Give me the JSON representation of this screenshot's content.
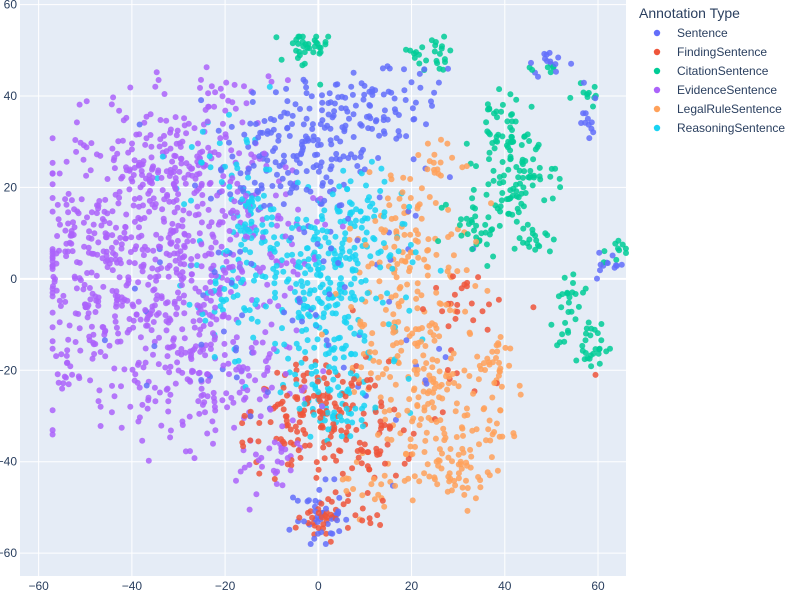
{
  "chart_data": {
    "type": "scatter",
    "title": "",
    "xlabel": "",
    "ylabel": "",
    "xlim": [
      -64,
      66
    ],
    "ylim": [
      -65,
      61
    ],
    "x_ticks": [
      -60,
      -40,
      -20,
      0,
      20,
      40,
      60
    ],
    "y_ticks": [
      -60,
      -40,
      -20,
      0,
      20,
      40,
      60
    ],
    "x_tick_labels": [
      "−60",
      "−40",
      "−20",
      "0",
      "20",
      "40",
      "60"
    ],
    "y_tick_labels": [
      "−60",
      "−40",
      "−20",
      "0",
      "20",
      "40",
      "60"
    ],
    "grid": true,
    "legend": {
      "title": "Annotation Type",
      "placement": "right"
    },
    "colors": {
      "plot_background": "#e5ecf6",
      "grid": "#ffffff",
      "text": "#2a3f5f"
    },
    "series": [
      {
        "name": "Sentence",
        "color": "#636efa",
        "clusters": [
          {
            "cx": -2,
            "cy": 30,
            "sx": 9,
            "sy": 8,
            "n": 150
          },
          {
            "cx": 12,
            "cy": 36,
            "sx": 6,
            "sy": 7,
            "n": 45
          },
          {
            "cx": -12,
            "cy": 22,
            "sx": 6,
            "sy": 7,
            "n": 35
          },
          {
            "cx": 0,
            "cy": -52,
            "sx": 2.5,
            "sy": 3.5,
            "n": 40
          },
          {
            "cx": 20,
            "cy": 40,
            "sx": 5,
            "sy": 6,
            "n": 25
          },
          {
            "cx": 49,
            "cy": 47,
            "sx": 2.5,
            "sy": 1.2,
            "n": 14
          },
          {
            "cx": 58,
            "cy": 37,
            "sx": 1.2,
            "sy": 4,
            "n": 12
          },
          {
            "cx": 62,
            "cy": 3,
            "sx": 2,
            "sy": 1.5,
            "n": 12
          },
          {
            "cx": 5,
            "cy": -5,
            "sx": 12,
            "sy": 14,
            "n": 50
          },
          {
            "cx": -25,
            "cy": -10,
            "sx": 12,
            "sy": 12,
            "n": 25
          }
        ]
      },
      {
        "name": "FindingSentence",
        "color": "#ef553b",
        "clusters": [
          {
            "cx": 0,
            "cy": -28,
            "sx": 7,
            "sy": 5,
            "n": 110
          },
          {
            "cx": 10,
            "cy": -36,
            "sx": 5,
            "sy": 4,
            "n": 55
          },
          {
            "cx": -10,
            "cy": -36,
            "sx": 4,
            "sy": 4,
            "n": 20
          },
          {
            "cx": 2,
            "cy": -52,
            "sx": 3,
            "sy": 2.5,
            "n": 30
          },
          {
            "cx": 30,
            "cy": -4,
            "sx": 3,
            "sy": 3,
            "n": 20
          },
          {
            "cx": 10,
            "cy": -50,
            "sx": 3,
            "sy": 2,
            "n": 12
          },
          {
            "cx": 30,
            "cy": -22,
            "sx": 12,
            "sy": 10,
            "n": 15
          }
        ]
      },
      {
        "name": "CitationSentence",
        "color": "#00cc96",
        "clusters": [
          {
            "cx": -3,
            "cy": 50,
            "sx": 2.5,
            "sy": 2.5,
            "n": 35
          },
          {
            "cx": 24,
            "cy": 49,
            "sx": 4,
            "sy": 2,
            "n": 25
          },
          {
            "cx": 40,
            "cy": 31,
            "sx": 3.5,
            "sy": 3,
            "n": 45
          },
          {
            "cx": 44,
            "cy": 22,
            "sx": 3.5,
            "sy": 3,
            "n": 40
          },
          {
            "cx": 41,
            "cy": 17,
            "sx": 3,
            "sy": 2.5,
            "n": 25
          },
          {
            "cx": 33,
            "cy": 12,
            "sx": 3.5,
            "sy": 3.5,
            "n": 35
          },
          {
            "cx": 47,
            "cy": 9,
            "sx": 2,
            "sy": 2.5,
            "n": 20
          },
          {
            "cx": 54,
            "cy": -3,
            "sx": 1.5,
            "sy": 3,
            "n": 18
          },
          {
            "cx": 58,
            "cy": -14,
            "sx": 3.5,
            "sy": 3,
            "n": 35
          },
          {
            "cx": 64,
            "cy": 6,
            "sx": 1.5,
            "sy": 1.5,
            "n": 10
          },
          {
            "cx": 40,
            "cy": 38,
            "sx": 2.5,
            "sy": 2,
            "n": 10
          },
          {
            "cx": 58,
            "cy": 40,
            "sx": 1.5,
            "sy": 2,
            "n": 10
          },
          {
            "cx": 50,
            "cy": 46,
            "sx": 1.5,
            "sy": 1,
            "n": 6
          }
        ]
      },
      {
        "name": "EvidenceSentence",
        "color": "#ab63fa",
        "clusters": [
          {
            "cx": -37,
            "cy": 5,
            "sx": 12,
            "sy": 16,
            "n": 500
          },
          {
            "cx": -30,
            "cy": 25,
            "sx": 8,
            "sy": 7,
            "n": 120
          },
          {
            "cx": -22,
            "cy": -20,
            "sx": 9,
            "sy": 9,
            "n": 150
          },
          {
            "cx": -50,
            "cy": 0,
            "sx": 3,
            "sy": 10,
            "n": 60
          },
          {
            "cx": -12,
            "cy": 8,
            "sx": 7,
            "sy": 12,
            "n": 80
          },
          {
            "cx": -10,
            "cy": -40,
            "sx": 4,
            "sy": 4,
            "n": 25
          },
          {
            "cx": -54,
            "cy": -22,
            "sx": 1,
            "sy": 2,
            "n": 10
          },
          {
            "cx": -18,
            "cy": 40,
            "sx": 4,
            "sy": 3,
            "n": 20
          }
        ]
      },
      {
        "name": "LegalRuleSentence",
        "color": "#ffa15a",
        "clusters": [
          {
            "cx": 20,
            "cy": 5,
            "sx": 7,
            "sy": 10,
            "n": 130
          },
          {
            "cx": 24,
            "cy": -30,
            "sx": 7,
            "sy": 8,
            "n": 110
          },
          {
            "cx": 30,
            "cy": -42,
            "sx": 4,
            "sy": 3,
            "n": 35
          },
          {
            "cx": 38,
            "cy": -20,
            "sx": 2,
            "sy": 4,
            "n": 30
          },
          {
            "cx": 20,
            "cy": -15,
            "sx": 6,
            "sy": 6,
            "n": 60
          },
          {
            "cx": 12,
            "cy": -45,
            "sx": 5,
            "sy": 3,
            "n": 20
          },
          {
            "cx": 38,
            "cy": -32,
            "sx": 2,
            "sy": 3,
            "n": 15
          },
          {
            "cx": 25,
            "cy": 25,
            "sx": 3,
            "sy": 3,
            "n": 15
          }
        ]
      },
      {
        "name": "ReasoningSentence",
        "color": "#19d3f3",
        "clusters": [
          {
            "cx": 2,
            "cy": 0,
            "sx": 8,
            "sy": 10,
            "n": 250
          },
          {
            "cx": -15,
            "cy": 10,
            "sx": 5,
            "sy": 8,
            "n": 70
          },
          {
            "cx": 5,
            "cy": -25,
            "sx": 6,
            "sy": 6,
            "n": 80
          },
          {
            "cx": -20,
            "cy": -5,
            "sx": 5,
            "sy": 6,
            "n": 40
          },
          {
            "cx": 10,
            "cy": 15,
            "sx": 4,
            "sy": 4,
            "n": 30
          },
          {
            "cx": -25,
            "cy": 25,
            "sx": 8,
            "sy": 6,
            "n": 20
          }
        ]
      }
    ]
  }
}
